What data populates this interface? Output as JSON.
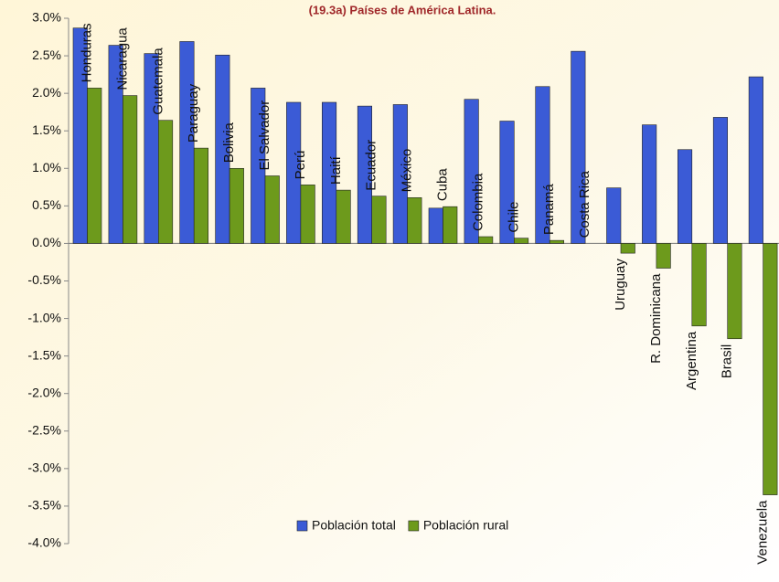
{
  "chart_data": {
    "type": "bar",
    "title": "(19.3a) Países de América Latina.",
    "categories": [
      "Honduras",
      "Nicaragua",
      "Guatemala",
      "Paraguay",
      "Bolivia",
      "El Salvador",
      "Perú",
      "Haití",
      "Ecuador",
      "México",
      "Cuba",
      "Colombia",
      "Chile",
      "Panamá",
      "Costa Rica",
      "Uruguay",
      "R. Dominicana",
      "Argentina",
      "Brasil",
      "Venezuela"
    ],
    "series": [
      {
        "name": "Población total",
        "color": "#3b5bd6",
        "values": [
          2.87,
          2.64,
          2.53,
          2.69,
          2.51,
          2.07,
          1.88,
          1.88,
          1.83,
          1.85,
          0.47,
          1.92,
          1.63,
          2.09,
          2.56,
          0.74,
          1.58,
          1.25,
          1.68,
          2.22
        ]
      },
      {
        "name": "Población rural",
        "color": "#6d9a1c",
        "values": [
          2.07,
          1.97,
          1.64,
          1.27,
          1.0,
          0.9,
          0.78,
          0.71,
          0.63,
          0.61,
          0.49,
          0.09,
          0.07,
          0.04,
          0,
          -0.13,
          -0.33,
          -1.1,
          -1.27,
          -3.35
        ]
      }
    ],
    "ylim": [
      -4.0,
      3.0
    ],
    "yticks": [
      {
        "value": 3.0,
        "label": "3.0%"
      },
      {
        "value": 2.5,
        "label": "2.5%"
      },
      {
        "value": 2.0,
        "label": "2.0%"
      },
      {
        "value": 1.5,
        "label": "1.5%"
      },
      {
        "value": 1.0,
        "label": "1.0%"
      },
      {
        "value": 0.5,
        "label": "0.5%"
      },
      {
        "value": 0.0,
        "label": "0.0%"
      },
      {
        "value": -0.5,
        "label": "-0.5%"
      },
      {
        "value": -1.0,
        "label": "-1.0%"
      },
      {
        "value": -1.5,
        "label": "-1.5%"
      },
      {
        "value": -2.0,
        "label": "-2.0%"
      },
      {
        "value": -2.5,
        "label": "-2.5%"
      },
      {
        "value": -3.0,
        "label": "-3.0%"
      },
      {
        "value": -3.5,
        "label": "-3.5%"
      },
      {
        "value": -4.0,
        "label": "-4.0%"
      }
    ],
    "grid": false,
    "legend": "bottom"
  }
}
